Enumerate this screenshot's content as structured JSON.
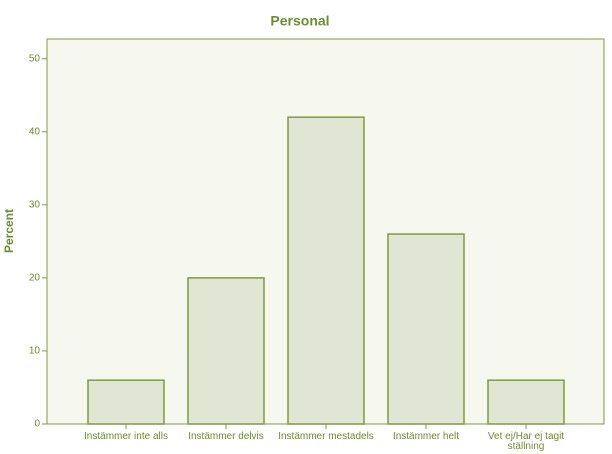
{
  "chart_data": {
    "type": "bar",
    "title": "Personal",
    "y_label": "Percent",
    "categories": [
      "Instämmer inte alls",
      "Instämmer delvis",
      "Instämmer mestadels",
      "Instämmer helt",
      "Vet ej/Har ej tagit ställning"
    ],
    "values": [
      6,
      20,
      42,
      26,
      6
    ],
    "color": "#e1e5d3",
    "edge_color": "#7f9c3c",
    "ylim": [
      0,
      52.7
    ],
    "yticks": [
      0,
      10,
      20,
      30,
      40,
      50
    ],
    "grid": false
  }
}
